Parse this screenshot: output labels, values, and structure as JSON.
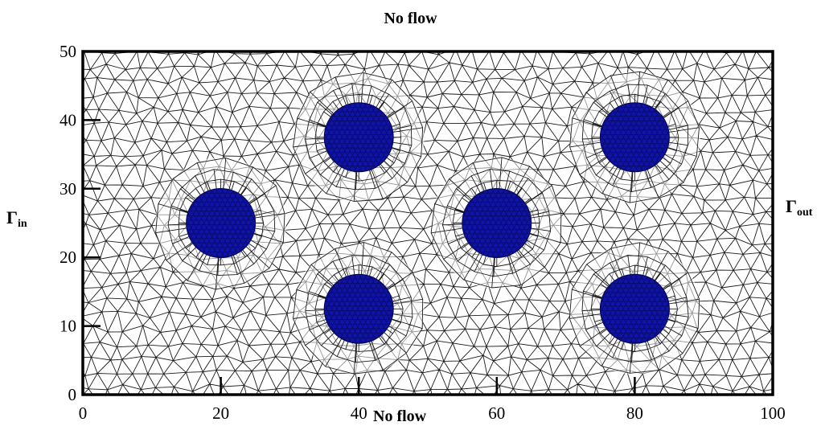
{
  "boundaries": {
    "top": "No flow",
    "bottom": "No flow",
    "inlet": {
      "symbol": "Γ",
      "subscript": "in"
    },
    "outlet": {
      "symbol": "Γ",
      "subscript": "out"
    }
  },
  "axes": {
    "x": {
      "min": 0,
      "max": 100,
      "ticks": [
        0,
        20,
        40,
        60,
        80,
        100
      ]
    },
    "y": {
      "min": 0,
      "max": 50,
      "ticks": [
        0,
        10,
        20,
        30,
        40,
        50
      ]
    }
  },
  "obstacles": [
    {
      "cx": 20,
      "cy": 25,
      "r": 5
    },
    {
      "cx": 40,
      "cy": 37.5,
      "r": 5
    },
    {
      "cx": 40,
      "cy": 12.5,
      "r": 5
    },
    {
      "cx": 60,
      "cy": 25,
      "r": 5
    },
    {
      "cx": 80,
      "cy": 37.5,
      "r": 5
    },
    {
      "cx": 80,
      "cy": 12.5,
      "r": 5
    }
  ],
  "colors": {
    "obstacle_fill": "#0f13a8",
    "mesh": "#1a1a1a",
    "frame": "#000000"
  }
}
